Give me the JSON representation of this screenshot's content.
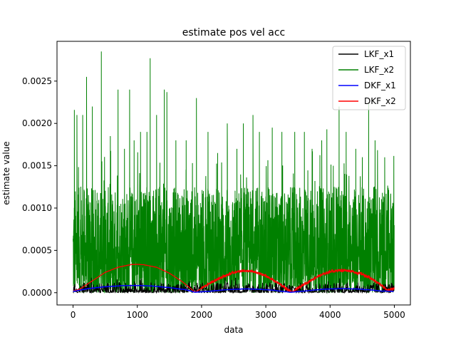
{
  "chart_data": {
    "type": "line",
    "title": "estimate pos vel acc",
    "xlabel": "data",
    "ylabel": "estimate value",
    "xlim": [
      -250,
      5250
    ],
    "ylim": [
      -0.000145,
      0.00297
    ],
    "xticks": [
      0,
      1000,
      2000,
      3000,
      4000,
      5000
    ],
    "xtick_labels": [
      "0",
      "1000",
      "2000",
      "3000",
      "4000",
      "5000"
    ],
    "yticks": [
      0.0,
      0.0005,
      0.001,
      0.0015,
      0.002,
      0.0025
    ],
    "ytick_labels": [
      "0.0000",
      "0.0005",
      "0.0010",
      "0.0015",
      "0.0020",
      "0.0025"
    ],
    "grid": false,
    "legend_position": "top-right",
    "n_samples": 5000,
    "series": [
      {
        "name": "LKF_x1",
        "color": "#000000",
        "description_values": {
          "kind": "noise",
          "x": [
            0,
            5000
          ],
          "typical_range": [
            0.0,
            0.00012
          ],
          "max": 0.00018
        }
      },
      {
        "name": "LKF_x2",
        "color": "#008000",
        "peaks": {
          "x": [
            20,
            60,
            150,
            210,
            300,
            440,
            580,
            700,
            800,
            880,
            950,
            1050,
            1150,
            1200,
            1300,
            1420,
            1460,
            1600,
            1760,
            1920,
            2100,
            2250,
            2400,
            2550,
            2650,
            2800,
            2900,
            3100,
            3250,
            3450,
            3600,
            3720,
            3870,
            3950,
            4050,
            4140,
            4250,
            4400,
            4600,
            4700,
            4850,
            4980
          ],
          "y": [
            0.00216,
            0.0021,
            0.0021,
            0.00255,
            0.0022,
            0.00285,
            0.00185,
            0.0024,
            0.0017,
            0.0024,
            0.0018,
            0.0019,
            0.0019,
            0.00277,
            0.0021,
            0.0024,
            0.00237,
            0.0018,
            0.0018,
            0.0023,
            0.0019,
            0.00165,
            0.002,
            0.0017,
            0.002,
            0.0021,
            0.0019,
            0.00195,
            0.0019,
            0.0019,
            0.0019,
            0.0017,
            0.0018,
            0.00193,
            0.0015,
            0.0022,
            0.0019,
            0.0017,
            0.00225,
            0.0018,
            0.0016,
            0.00085
          ]
        },
        "typical_range": [
          0.0,
          0.0012
        ]
      },
      {
        "name": "DKF_x1",
        "color": "#0000ff",
        "x": [
          0,
          250,
          500,
          750,
          1000,
          1250,
          1500,
          1750,
          1900,
          2100,
          2300,
          2500,
          2700,
          2900,
          3100,
          3300,
          3400,
          3600,
          3800,
          4000,
          4200,
          4400,
          4600,
          4800,
          5000
        ],
        "y": [
          1.5e-05,
          5e-05,
          7e-05,
          8.2e-05,
          8.5e-05,
          7.8e-05,
          6e-05,
          3.5e-05,
          5e-06,
          1.5e-05,
          3e-05,
          4e-05,
          4.5e-05,
          4e-05,
          3e-05,
          1.2e-05,
          5e-06,
          2e-05,
          3.5e-05,
          4.5e-05,
          4.8e-05,
          4.5e-05,
          3.5e-05,
          2e-05,
          1.5e-05
        ]
      },
      {
        "name": "DKF_x2",
        "color": "#ff0000",
        "x": [
          0,
          100,
          300,
          500,
          700,
          900,
          1000,
          1100,
          1300,
          1500,
          1700,
          1900,
          2100,
          2300,
          2500,
          2650,
          2800,
          3000,
          3200,
          3400,
          3600,
          3800,
          4000,
          4150,
          4300,
          4500,
          4700,
          4900,
          5000
        ],
        "y": [
          2e-05,
          4e-05,
          0.00014,
          0.00024,
          0.0003,
          0.000332,
          0.000335,
          0.00033,
          0.0003,
          0.00023,
          0.00013,
          5e-06,
          0.0001,
          0.00018,
          0.00024,
          0.00026,
          0.00025,
          0.0002,
          0.00011,
          5e-06,
          0.0001,
          0.00019,
          0.00025,
          0.000265,
          0.00026,
          0.00022,
          0.00014,
          3e-05,
          5e-05
        ],
        "noise_band_regions": [
          [
            2000,
            3400
          ],
          [
            3450,
            5000
          ]
        ],
        "noise_amplitude": 1.5e-05
      }
    ]
  }
}
